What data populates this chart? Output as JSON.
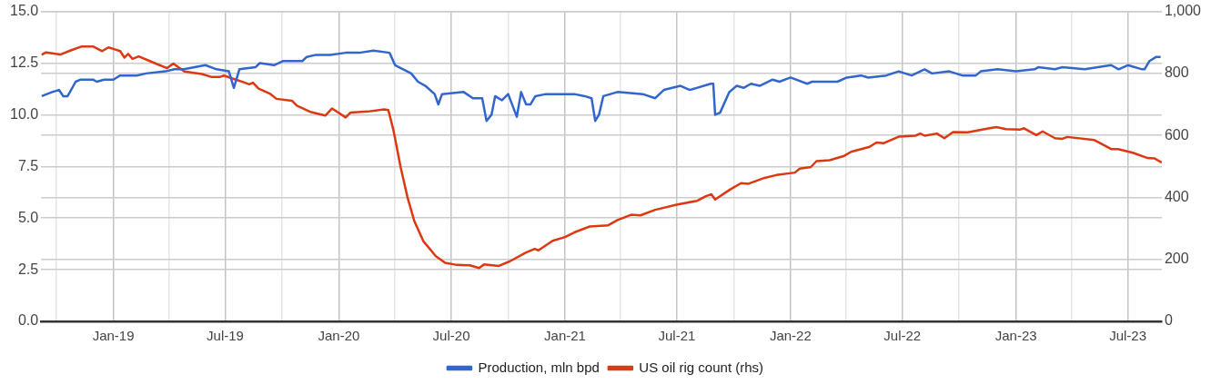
{
  "chart_data": {
    "type": "line",
    "legend": "bottom",
    "grid": true,
    "marker": "none",
    "line_style": "solid",
    "xlim": [
      "2018-09-06",
      "2023-08-25"
    ],
    "xticks": [
      {
        "value": "2018-10-01",
        "label": null
      },
      {
        "value": "2019-01-01",
        "label": "Jan-19"
      },
      {
        "value": "2019-04-01",
        "label": null
      },
      {
        "value": "2019-07-01",
        "label": "Jul-19"
      },
      {
        "value": "2019-10-01",
        "label": null
      },
      {
        "value": "2020-01-01",
        "label": "Jan-20"
      },
      {
        "value": "2020-04-01",
        "label": null
      },
      {
        "value": "2020-07-01",
        "label": "Jul-20"
      },
      {
        "value": "2020-10-01",
        "label": null
      },
      {
        "value": "2021-01-01",
        "label": "Jan-21"
      },
      {
        "value": "2021-04-01",
        "label": null
      },
      {
        "value": "2021-07-01",
        "label": "Jul-21"
      },
      {
        "value": "2021-10-01",
        "label": null
      },
      {
        "value": "2022-01-01",
        "label": "Jan-22"
      },
      {
        "value": "2022-04-01",
        "label": null
      },
      {
        "value": "2022-07-01",
        "label": "Jul-22"
      },
      {
        "value": "2022-10-01",
        "label": null
      },
      {
        "value": "2023-01-01",
        "label": "Jan-23"
      },
      {
        "value": "2023-04-01",
        "label": null
      },
      {
        "value": "2023-07-01",
        "label": "Jul-23"
      }
    ],
    "ylim": [
      0,
      15
    ],
    "yticks": [
      {
        "value": 0,
        "label": "0.0"
      },
      {
        "value": 2.5,
        "label": "2.5"
      },
      {
        "value": 5,
        "label": "5.0"
      },
      {
        "value": 7.5,
        "label": "7.5"
      },
      {
        "value": 10,
        "label": "10.0"
      },
      {
        "value": 12.5,
        "label": "12.5"
      },
      {
        "value": 15,
        "label": "15.0"
      }
    ],
    "y2lim": [
      0,
      1000
    ],
    "y2ticks": [
      0,
      200,
      400,
      600,
      800,
      {
        "value": 1000,
        "label": "1,000"
      }
    ],
    "series": [
      {
        "name": "Production, mln bpd",
        "color": "#3366cc",
        "x": [
          "2018-09-07",
          "2018-09-24",
          "2018-10-05",
          "2018-10-12",
          "2018-10-19",
          "2018-11-01",
          "2018-11-09",
          "2018-11-29",
          "2018-12-05",
          "2018-12-17",
          "2019-01-01",
          "2019-01-12",
          "2019-02-08",
          "2019-02-23",
          "2019-03-26",
          "2019-04-10",
          "2019-04-25",
          "2019-05-30",
          "2019-06-17",
          "2019-07-07",
          "2019-07-15",
          "2019-07-24",
          "2019-08-19",
          "2019-08-26",
          "2019-09-18",
          "2019-10-03",
          "2019-11-03",
          "2019-11-10",
          "2019-11-25",
          "2019-12-18",
          "2020-01-12",
          "2020-02-03",
          "2020-02-26",
          "2020-03-23",
          "2020-04-01",
          "2020-04-27",
          "2020-05-08",
          "2020-05-20",
          "2020-06-04",
          "2020-06-10",
          "2020-06-16",
          "2020-07-21",
          "2020-08-05",
          "2020-08-20",
          "2020-08-27",
          "2020-09-04",
          "2020-09-10",
          "2020-09-21",
          "2020-10-01",
          "2020-10-15",
          "2020-10-22",
          "2020-10-30",
          "2020-11-06",
          "2020-11-14",
          "2020-12-01",
          "2021-01-16",
          "2021-02-02",
          "2021-02-13",
          "2021-02-19",
          "2021-02-25",
          "2021-03-04",
          "2021-03-27",
          "2021-05-07",
          "2021-05-27",
          "2021-06-10",
          "2021-07-07",
          "2021-07-22",
          "2021-08-25",
          "2021-08-29",
          "2021-09-01",
          "2021-09-09",
          "2021-09-24",
          "2021-10-06",
          "2021-10-17",
          "2021-10-29",
          "2021-11-12",
          "2021-12-03",
          "2021-12-14",
          "2022-01-01",
          "2022-01-28",
          "2022-02-05",
          "2022-03-18",
          "2022-04-02",
          "2022-04-25",
          "2022-05-07",
          "2022-06-05",
          "2022-06-25",
          "2022-07-16",
          "2022-08-06",
          "2022-08-18",
          "2022-09-15",
          "2022-10-06",
          "2022-10-28",
          "2022-11-05",
          "2022-12-02",
          "2023-01-01",
          "2023-01-31",
          "2023-02-06",
          "2023-03-05",
          "2023-03-17",
          "2023-04-22",
          "2023-06-04",
          "2023-06-16",
          "2023-07-01",
          "2023-07-24",
          "2023-07-28",
          "2023-08-05",
          "2023-08-16",
          "2023-08-23"
        ],
        "values": [
          10.9,
          11.1,
          11.2,
          10.9,
          10.9,
          11.6,
          11.7,
          11.7,
          11.6,
          11.7,
          11.7,
          11.9,
          11.9,
          12.0,
          12.1,
          12.2,
          12.2,
          12.4,
          12.2,
          12.1,
          11.3,
          12.2,
          12.3,
          12.5,
          12.4,
          12.6,
          12.6,
          12.8,
          12.9,
          12.9,
          13.0,
          13.0,
          13.1,
          13.0,
          12.4,
          12.0,
          11.6,
          11.4,
          11.0,
          10.5,
          11.0,
          11.1,
          10.8,
          10.8,
          9.7,
          10.0,
          10.9,
          10.7,
          11.0,
          9.9,
          11.1,
          10.5,
          10.5,
          10.9,
          11.0,
          11.0,
          10.9,
          10.8,
          9.7,
          10.0,
          10.9,
          11.1,
          11.0,
          10.8,
          11.2,
          11.4,
          11.2,
          11.5,
          11.5,
          10.0,
          10.1,
          11.1,
          11.4,
          11.3,
          11.5,
          11.4,
          11.7,
          11.6,
          11.8,
          11.5,
          11.6,
          11.6,
          11.8,
          11.9,
          11.8,
          11.9,
          12.1,
          11.9,
          12.2,
          12.0,
          12.1,
          11.9,
          11.9,
          12.1,
          12.2,
          12.1,
          12.2,
          12.3,
          12.2,
          12.3,
          12.2,
          12.4,
          12.2,
          12.4,
          12.2,
          12.2,
          12.6,
          12.8,
          12.8
        ]
      },
      {
        "name": "US oil rig count (rhs)",
        "color": "#dc3912",
        "axis": "y2",
        "x": [
          "2018-09-07",
          "2018-09-14",
          "2018-10-07",
          "2018-10-25",
          "2018-11-11",
          "2018-11-29",
          "2018-12-14",
          "2018-12-24",
          "2019-01-01",
          "2019-01-12",
          "2019-01-19",
          "2019-01-25",
          "2019-02-01",
          "2019-02-11",
          "2019-03-08",
          "2019-03-29",
          "2019-04-08",
          "2019-04-26",
          "2019-05-24",
          "2019-06-08",
          "2019-06-23",
          "2019-06-29",
          "2019-07-15",
          "2019-07-30",
          "2019-08-09",
          "2019-08-15",
          "2019-08-24",
          "2019-09-12",
          "2019-09-22",
          "2019-10-17",
          "2019-10-25",
          "2019-11-17",
          "2019-12-10",
          "2019-12-21",
          "2020-01-12",
          "2020-01-20",
          "2020-02-17",
          "2020-03-14",
          "2020-03-21",
          "2020-03-29",
          "2020-04-10",
          "2020-04-21",
          "2020-05-02",
          "2020-05-17",
          "2020-06-06",
          "2020-06-21",
          "2020-07-10",
          "2020-07-31",
          "2020-08-15",
          "2020-08-23",
          "2020-09-16",
          "2020-10-04",
          "2020-10-30",
          "2020-11-13",
          "2020-11-19",
          "2020-12-12",
          "2021-01-01",
          "2021-01-16",
          "2021-02-10",
          "2021-03-12",
          "2021-03-27",
          "2021-04-18",
          "2021-05-03",
          "2021-05-27",
          "2021-07-02",
          "2021-08-03",
          "2021-08-17",
          "2021-08-26",
          "2021-09-01",
          "2021-09-25",
          "2021-10-13",
          "2021-10-25",
          "2021-11-20",
          "2021-12-09",
          "2022-01-08",
          "2022-01-16",
          "2022-02-03",
          "2022-02-12",
          "2022-03-05",
          "2022-03-29",
          "2022-04-09",
          "2022-05-09",
          "2022-05-20",
          "2022-06-01",
          "2022-06-25",
          "2022-07-22",
          "2022-07-30",
          "2022-08-06",
          "2022-08-26",
          "2022-09-07",
          "2022-09-21",
          "2022-10-15",
          "2022-11-15",
          "2022-11-30",
          "2022-12-16",
          "2023-01-08",
          "2023-01-14",
          "2023-02-03",
          "2023-02-13",
          "2023-03-05",
          "2023-03-17",
          "2023-03-25",
          "2023-05-08",
          "2023-06-04",
          "2023-06-15",
          "2023-07-09",
          "2023-08-02",
          "2023-08-13",
          "2023-08-25"
        ],
        "values": [
          860,
          868,
          861,
          875,
          887,
          887,
          872,
          884,
          879,
          872,
          851,
          863,
          847,
          855,
          834,
          817,
          832,
          806,
          798,
          789,
          789,
          793,
          782,
          772,
          765,
          770,
          751,
          734,
          718,
          712,
          696,
          675,
          664,
          687,
          658,
          674,
          677,
          684,
          682,
          620,
          497,
          401,
          324,
          258,
          210,
          189,
          182,
          181,
          172,
          184,
          179,
          194,
          222,
          234,
          229,
          260,
          272,
          287,
          306,
          310,
          327,
          344,
          342,
          360,
          377,
          389,
          404,
          410,
          393,
          425,
          446,
          444,
          463,
          472,
          480,
          493,
          498,
          517,
          520,
          534,
          547,
          563,
          577,
          575,
          596,
          599,
          606,
          599,
          606,
          591,
          611,
          610,
          622,
          627,
          620,
          619,
          623,
          601,
          613,
          591,
          589,
          595,
          585,
          556,
          556,
          544,
          527,
          526,
          512
        ]
      }
    ]
  }
}
